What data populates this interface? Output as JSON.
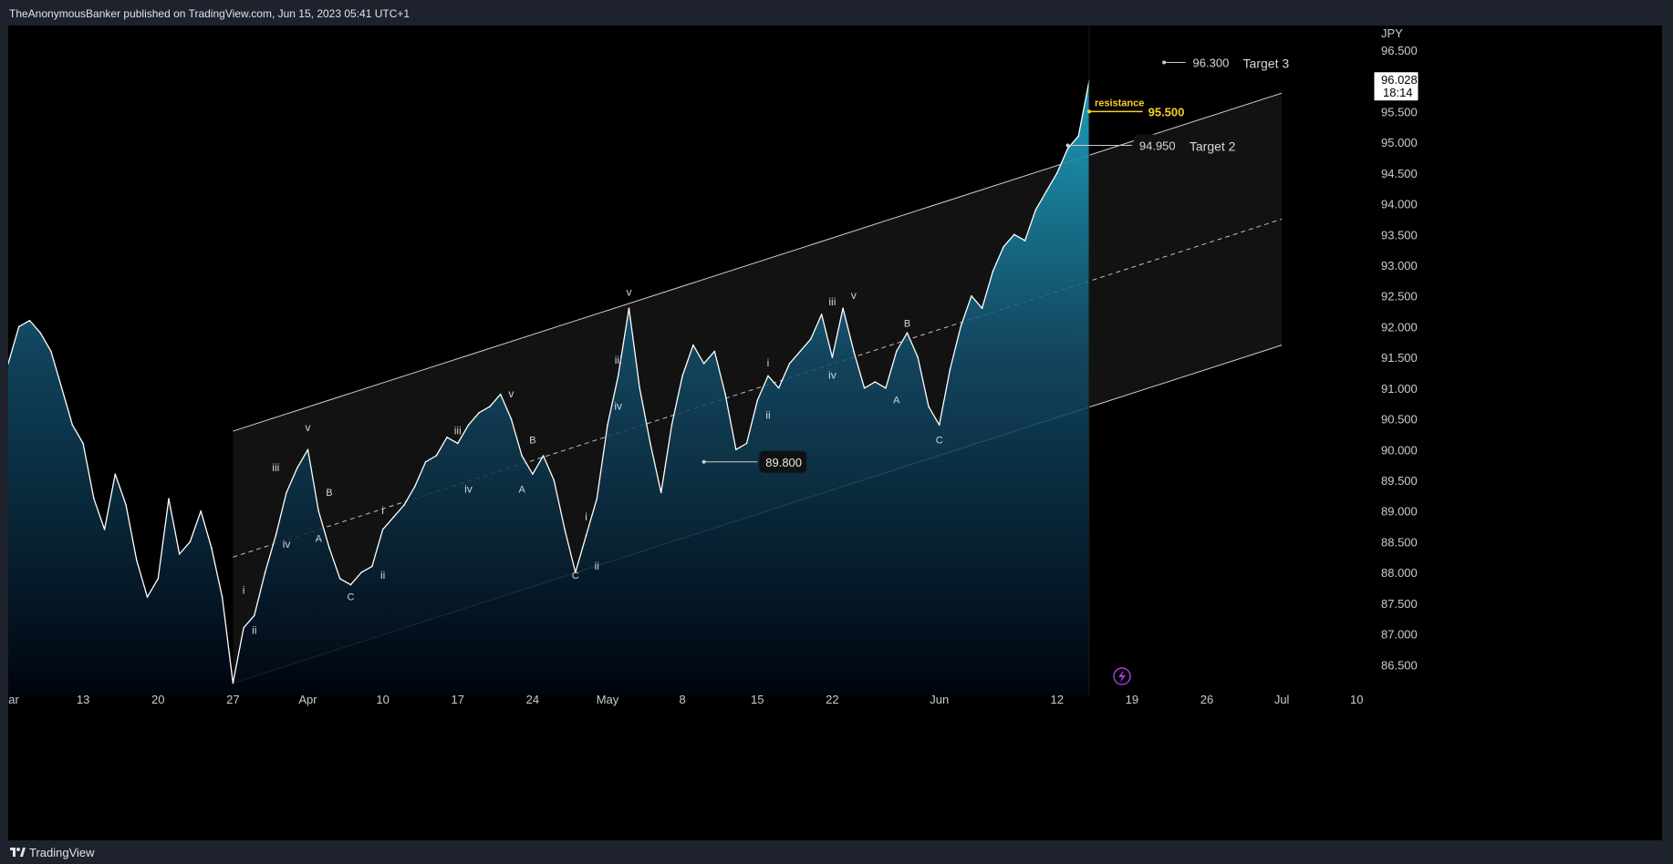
{
  "header": {
    "publish_line": "TheAnonymousBanker published on TradingView.com, Jun 15, 2023 05:41 UTC+1"
  },
  "footer": {
    "brand": "TradingView",
    "logo_icon": "tradingview-logo-icon"
  },
  "colors": {
    "background": "#000000",
    "line": "#ffffff",
    "area_top": "#1ea7c4",
    "area_bottom": "#000510",
    "channel_fill": "#141414",
    "resistance": "#f7d02c",
    "lightning": "#a53fd4"
  },
  "price_axis": {
    "currency": "JPY",
    "current_price": "96.028",
    "countdown": "18:14"
  },
  "chart_data": {
    "type": "area",
    "xaxis_ticks": [
      "ar",
      "13",
      "20",
      "27",
      "Apr",
      "10",
      "17",
      "24",
      "May",
      "8",
      "15",
      "22",
      "Jun",
      "12",
      "19",
      "26",
      "Jul",
      "10"
    ],
    "yaxis_ticks": [
      "86.500",
      "87.000",
      "87.500",
      "88.000",
      "88.500",
      "89.000",
      "89.500",
      "90.000",
      "90.500",
      "91.000",
      "91.500",
      "92.000",
      "92.500",
      "93.000",
      "93.500",
      "94.000",
      "94.500",
      "95.000",
      "95.500",
      "96.000",
      "96.500"
    ],
    "ylim": [
      86.0,
      96.9
    ],
    "xlim": [
      "2023-03-06",
      "2023-07-11"
    ],
    "series": [
      {
        "values": [
          [
            "2023-03-06",
            91.4
          ],
          [
            "2023-03-07",
            92.0
          ],
          [
            "2023-03-08",
            92.1
          ],
          [
            "2023-03-09",
            91.9
          ],
          [
            "2023-03-10",
            91.6
          ],
          [
            "2023-03-11",
            91.0
          ],
          [
            "2023-03-12",
            90.4
          ],
          [
            "2023-03-13",
            90.1
          ],
          [
            "2023-03-14",
            89.2
          ],
          [
            "2023-03-15",
            88.7
          ],
          [
            "2023-03-16",
            89.6
          ],
          [
            "2023-03-17",
            89.1
          ],
          [
            "2023-03-18",
            88.2
          ],
          [
            "2023-03-19",
            87.6
          ],
          [
            "2023-03-20",
            87.9
          ],
          [
            "2023-03-21",
            89.2
          ],
          [
            "2023-03-22",
            88.3
          ],
          [
            "2023-03-23",
            88.5
          ],
          [
            "2023-03-24",
            89.0
          ],
          [
            "2023-03-25",
            88.4
          ],
          [
            "2023-03-26",
            87.6
          ],
          [
            "2023-03-27",
            86.2
          ],
          [
            "2023-03-28",
            87.1
          ],
          [
            "2023-03-29",
            87.3
          ],
          [
            "2023-03-30",
            88.0
          ],
          [
            "2023-03-31",
            88.6
          ],
          [
            "2023-04-01",
            89.3
          ],
          [
            "2023-04-02",
            89.7
          ],
          [
            "2023-04-03",
            90.0
          ],
          [
            "2023-04-04",
            89.0
          ],
          [
            "2023-04-05",
            88.4
          ],
          [
            "2023-04-06",
            87.9
          ],
          [
            "2023-04-07",
            87.8
          ],
          [
            "2023-04-08",
            88.0
          ],
          [
            "2023-04-09",
            88.1
          ],
          [
            "2023-04-10",
            88.7
          ],
          [
            "2023-04-11",
            88.9
          ],
          [
            "2023-04-12",
            89.1
          ],
          [
            "2023-04-13",
            89.4
          ],
          [
            "2023-04-14",
            89.8
          ],
          [
            "2023-04-15",
            89.9
          ],
          [
            "2023-04-16",
            90.2
          ],
          [
            "2023-04-17",
            90.1
          ],
          [
            "2023-04-18",
            90.4
          ],
          [
            "2023-04-19",
            90.6
          ],
          [
            "2023-04-20",
            90.7
          ],
          [
            "2023-04-21",
            90.9
          ],
          [
            "2023-04-22",
            90.5
          ],
          [
            "2023-04-23",
            89.9
          ],
          [
            "2023-04-24",
            89.6
          ],
          [
            "2023-04-25",
            89.9
          ],
          [
            "2023-04-26",
            89.5
          ],
          [
            "2023-04-27",
            88.7
          ],
          [
            "2023-04-28",
            88.0
          ],
          [
            "2023-04-29",
            88.6
          ],
          [
            "2023-04-30",
            89.2
          ],
          [
            "2023-05-01",
            90.4
          ],
          [
            "2023-05-02",
            91.2
          ],
          [
            "2023-05-03",
            92.3
          ],
          [
            "2023-05-04",
            91.0
          ],
          [
            "2023-05-05",
            90.1
          ],
          [
            "2023-05-06",
            89.3
          ],
          [
            "2023-05-07",
            90.4
          ],
          [
            "2023-05-08",
            91.2
          ],
          [
            "2023-05-09",
            91.7
          ],
          [
            "2023-05-10",
            91.4
          ],
          [
            "2023-05-11",
            91.6
          ],
          [
            "2023-05-12",
            90.9
          ],
          [
            "2023-05-13",
            90.0
          ],
          [
            "2023-05-14",
            90.1
          ],
          [
            "2023-05-15",
            90.8
          ],
          [
            "2023-05-16",
            91.2
          ],
          [
            "2023-05-17",
            91.0
          ],
          [
            "2023-05-18",
            91.4
          ],
          [
            "2023-05-19",
            91.6
          ],
          [
            "2023-05-20",
            91.8
          ],
          [
            "2023-05-21",
            92.2
          ],
          [
            "2023-05-22",
            91.5
          ],
          [
            "2023-05-23",
            92.3
          ],
          [
            "2023-05-24",
            91.6
          ],
          [
            "2023-05-25",
            91.0
          ],
          [
            "2023-05-26",
            91.1
          ],
          [
            "2023-05-27",
            91.0
          ],
          [
            "2023-05-28",
            91.6
          ],
          [
            "2023-05-29",
            91.9
          ],
          [
            "2023-05-30",
            91.5
          ],
          [
            "2023-05-31",
            90.7
          ],
          [
            "2023-06-01",
            90.4
          ],
          [
            "2023-06-02",
            91.3
          ],
          [
            "2023-06-03",
            92.0
          ],
          [
            "2023-06-04",
            92.5
          ],
          [
            "2023-06-05",
            92.3
          ],
          [
            "2023-06-06",
            92.9
          ],
          [
            "2023-06-07",
            93.3
          ],
          [
            "2023-06-08",
            93.5
          ],
          [
            "2023-06-09",
            93.4
          ],
          [
            "2023-06-10",
            93.9
          ],
          [
            "2023-06-11",
            94.2
          ],
          [
            "2023-06-12",
            94.5
          ],
          [
            "2023-06-13",
            94.9
          ],
          [
            "2023-06-14",
            95.1
          ],
          [
            "2023-06-15",
            96.0
          ]
        ]
      }
    ],
    "channel": {
      "upper": [
        [
          "2023-03-27",
          90.3
        ],
        [
          "2023-07-03",
          95.8
        ]
      ],
      "median": [
        [
          "2023-03-27",
          88.25
        ],
        [
          "2023-07-03",
          93.75
        ]
      ],
      "lower": [
        [
          "2023-03-27",
          86.2
        ],
        [
          "2023-07-03",
          91.7
        ]
      ]
    },
    "annotations": {
      "horizontal_levels": [
        {
          "text": "96.300",
          "label": "Target 3",
          "date_from": "2023-06-22",
          "date_to": "2023-06-24",
          "price": 96.3
        },
        {
          "text": "95.500",
          "label": "resistance",
          "date_from": "2023-06-15",
          "date_to": "2023-06-20",
          "price": 95.5
        },
        {
          "text": "94.950",
          "label": "Target 2",
          "date_from": "2023-06-13",
          "date_to": "2023-06-19",
          "price": 94.95
        },
        {
          "text": "89.800",
          "label": "",
          "date_from": "2023-05-10",
          "date_to": "2023-05-15",
          "price": 89.8
        }
      ],
      "waves": [
        {
          "text": "i",
          "date": "2023-03-28",
          "price": 87.65
        },
        {
          "text": "ii",
          "date": "2023-03-29",
          "price": 87.0
        },
        {
          "text": "iii",
          "date": "2023-03-31",
          "price": 89.65
        },
        {
          "text": "iv",
          "date": "2023-04-01",
          "price": 88.4
        },
        {
          "text": "v",
          "date": "2023-04-03",
          "price": 90.3
        },
        {
          "text": "A",
          "date": "2023-04-04",
          "price": 88.5
        },
        {
          "text": "B",
          "date": "2023-04-05",
          "price": 89.25
        },
        {
          "text": "C",
          "date": "2023-04-07",
          "price": 87.55
        },
        {
          "text": "i",
          "date": "2023-04-10",
          "price": 88.95
        },
        {
          "text": "ii",
          "date": "2023-04-10",
          "price": 87.9
        },
        {
          "text": "iii",
          "date": "2023-04-17",
          "price": 90.25
        },
        {
          "text": "iv",
          "date": "2023-04-18",
          "price": 89.3
        },
        {
          "text": "v",
          "date": "2023-04-22",
          "price": 90.85
        },
        {
          "text": "B",
          "date": "2023-04-24",
          "price": 90.1
        },
        {
          "text": "A",
          "date": "2023-04-23",
          "price": 89.3
        },
        {
          "text": "C",
          "date": "2023-04-28",
          "price": 87.9
        },
        {
          "text": "i",
          "date": "2023-04-29",
          "price": 88.85
        },
        {
          "text": "ii",
          "date": "2023-04-30",
          "price": 88.05
        },
        {
          "text": "iii",
          "date": "2023-05-02",
          "price": 91.4
        },
        {
          "text": "iv",
          "date": "2023-05-02",
          "price": 90.65
        },
        {
          "text": "v",
          "date": "2023-05-03",
          "price": 92.5
        },
        {
          "text": "i",
          "date": "2023-05-16",
          "price": 91.35
        },
        {
          "text": "ii",
          "date": "2023-05-16",
          "price": 90.5
        },
        {
          "text": "iii",
          "date": "2023-05-22",
          "price": 92.35
        },
        {
          "text": "iv",
          "date": "2023-05-22",
          "price": 91.15
        },
        {
          "text": "v",
          "date": "2023-05-24",
          "price": 92.45
        },
        {
          "text": "A",
          "date": "2023-05-28",
          "price": 90.75
        },
        {
          "text": "B",
          "date": "2023-05-29",
          "price": 92.0
        },
        {
          "text": "C",
          "date": "2023-06-01",
          "price": 90.1
        }
      ]
    }
  }
}
